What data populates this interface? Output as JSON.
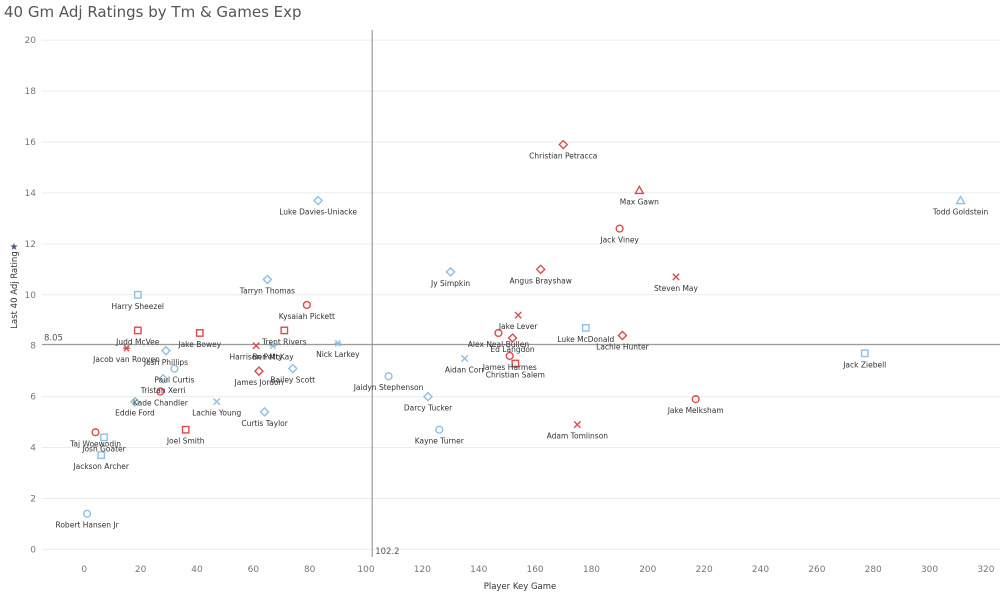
{
  "title": "40 Gm Adj Ratings by Tm & Games Exp",
  "colors": {
    "red": "#e0484d",
    "blue": "#8fbfe3",
    "refline": "#9a9a9a",
    "gridline": "#ececec"
  },
  "chart_data": {
    "type": "scatter",
    "title": "40 Gm Adj Ratings by Tm & Games Exp",
    "xlabel": "Player Key Game",
    "ylabel": "Last 40 Adj Rating",
    "xlim": [
      -15,
      325
    ],
    "ylim": [
      -0.3,
      20.4
    ],
    "xticks": [
      0,
      20,
      40,
      60,
      80,
      100,
      120,
      140,
      160,
      180,
      200,
      220,
      240,
      260,
      280,
      300,
      320
    ],
    "yticks": [
      0,
      2,
      4,
      6,
      8,
      10,
      12,
      14,
      16,
      18,
      20
    ],
    "grid": "horizontal",
    "reference_lines": {
      "x": 102.2,
      "y": 8.05,
      "x_label": "102.2",
      "y_label": "8.05"
    },
    "points": [
      {
        "name": "Christian Petracca",
        "x": 170,
        "y": 15.9,
        "color": "red",
        "shape": "diamond"
      },
      {
        "name": "Max Gawn",
        "x": 197,
        "y": 14.1,
        "color": "red",
        "shape": "triangle"
      },
      {
        "name": "Todd Goldstein",
        "x": 311,
        "y": 13.7,
        "color": "blue",
        "shape": "triangle"
      },
      {
        "name": "Luke Davies-Uniacke",
        "x": 83,
        "y": 13.7,
        "color": "blue",
        "shape": "diamond"
      },
      {
        "name": "Jack Viney",
        "x": 190,
        "y": 12.6,
        "color": "red",
        "shape": "circle"
      },
      {
        "name": "Angus Brayshaw",
        "x": 162,
        "y": 11.0,
        "color": "red",
        "shape": "diamond"
      },
      {
        "name": "Jy Simpkin",
        "x": 130,
        "y": 10.9,
        "color": "blue",
        "shape": "diamond"
      },
      {
        "name": "Steven May",
        "x": 210,
        "y": 10.7,
        "color": "red",
        "shape": "x"
      },
      {
        "name": "Tarryn Thomas",
        "x": 65,
        "y": 10.6,
        "color": "blue",
        "shape": "diamond"
      },
      {
        "name": "Harry Sheezel",
        "x": 19,
        "y": 10.0,
        "color": "blue",
        "shape": "square"
      },
      {
        "name": "Kysaiah Pickett",
        "x": 79,
        "y": 9.6,
        "color": "red",
        "shape": "circle"
      },
      {
        "name": "Jake Lever",
        "x": 154,
        "y": 9.2,
        "color": "red",
        "shape": "x"
      },
      {
        "name": "Luke McDonald",
        "x": 178,
        "y": 8.7,
        "color": "blue",
        "shape": "square"
      },
      {
        "name": "Judd McVee",
        "x": 19,
        "y": 8.6,
        "color": "red",
        "shape": "square"
      },
      {
        "name": "Trent Rivers",
        "x": 71,
        "y": 8.6,
        "color": "red",
        "shape": "square"
      },
      {
        "name": "Alex Neal-Bullen",
        "x": 147,
        "y": 8.5,
        "color": "red",
        "shape": "circle"
      },
      {
        "name": "Jake Bowey",
        "x": 41,
        "y": 8.5,
        "color": "red",
        "shape": "square"
      },
      {
        "name": "Lachie Hunter",
        "x": 191,
        "y": 8.4,
        "color": "red",
        "shape": "diamond"
      },
      {
        "name": "Ed Langdon",
        "x": 152,
        "y": 8.3,
        "color": "red",
        "shape": "diamond"
      },
      {
        "name": "Nick Larkey",
        "x": 90,
        "y": 8.1,
        "color": "blue",
        "shape": "asterisk"
      },
      {
        "name": "Harrison Petty",
        "x": 61,
        "y": 8.0,
        "color": "red",
        "shape": "x"
      },
      {
        "name": "Ben McKay",
        "x": 67,
        "y": 8.0,
        "color": "blue",
        "shape": "asterisk"
      },
      {
        "name": "Jacob van Rooyen",
        "x": 15,
        "y": 7.9,
        "color": "red",
        "shape": "asterisk"
      },
      {
        "name": "Josh Phillips",
        "x": 29,
        "y": 7.8,
        "color": "blue",
        "shape": "diamond"
      },
      {
        "name": "Jack Ziebell",
        "x": 277,
        "y": 7.7,
        "color": "blue",
        "shape": "square"
      },
      {
        "name": "James Harmes",
        "x": 151,
        "y": 7.6,
        "color": "red",
        "shape": "circle"
      },
      {
        "name": "Aidan Corr",
        "x": 135,
        "y": 7.5,
        "color": "blue",
        "shape": "x"
      },
      {
        "name": "Christian Salem",
        "x": 153,
        "y": 7.3,
        "color": "red",
        "shape": "square"
      },
      {
        "name": "Paul Curtis",
        "x": 32,
        "y": 7.1,
        "color": "blue",
        "shape": "circle"
      },
      {
        "name": "Bailey Scott",
        "x": 74,
        "y": 7.1,
        "color": "blue",
        "shape": "diamond"
      },
      {
        "name": "James Jordon",
        "x": 62,
        "y": 7.0,
        "color": "red",
        "shape": "diamond"
      },
      {
        "name": "Jaidyn Stephenson",
        "x": 108,
        "y": 6.8,
        "color": "blue",
        "shape": "circle"
      },
      {
        "name": "Tristan Xerri",
        "x": 28,
        "y": 6.7,
        "color": "blue",
        "shape": "diamond"
      },
      {
        "name": "Kade Chandler",
        "x": 27,
        "y": 6.2,
        "color": "red",
        "shape": "circle"
      },
      {
        "name": "Darcy Tucker",
        "x": 122,
        "y": 6.0,
        "color": "blue",
        "shape": "diamond"
      },
      {
        "name": "Jake Melksham",
        "x": 217,
        "y": 5.9,
        "color": "red",
        "shape": "circle"
      },
      {
        "name": "Eddie Ford",
        "x": 18,
        "y": 5.8,
        "color": "blue",
        "shape": "diamond"
      },
      {
        "name": "Lachie Young",
        "x": 47,
        "y": 5.8,
        "color": "blue",
        "shape": "x"
      },
      {
        "name": "Curtis Taylor",
        "x": 64,
        "y": 5.4,
        "color": "blue",
        "shape": "diamond"
      },
      {
        "name": "Adam Tomlinson",
        "x": 175,
        "y": 4.9,
        "color": "red",
        "shape": "x"
      },
      {
        "name": "Kayne Turner",
        "x": 126,
        "y": 4.7,
        "color": "blue",
        "shape": "circle"
      },
      {
        "name": "Joel Smith",
        "x": 36,
        "y": 4.7,
        "color": "red",
        "shape": "square"
      },
      {
        "name": "Taj Woewodin",
        "x": 4,
        "y": 4.6,
        "color": "red",
        "shape": "circle"
      },
      {
        "name": "Josh Goater",
        "x": 7,
        "y": 4.4,
        "color": "blue",
        "shape": "square"
      },
      {
        "name": "Jackson Archer",
        "x": 6,
        "y": 3.7,
        "color": "blue",
        "shape": "square"
      },
      {
        "name": "Robert Hansen Jr",
        "x": 1,
        "y": 1.4,
        "color": "blue",
        "shape": "circle"
      }
    ]
  }
}
